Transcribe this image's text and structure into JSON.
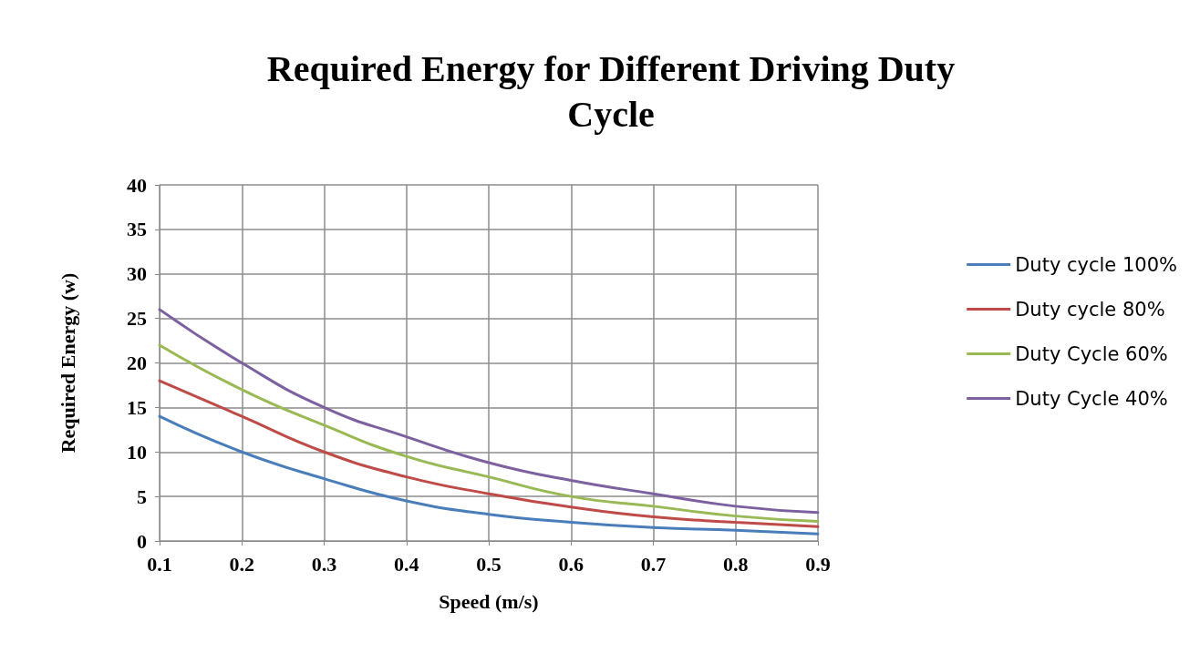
{
  "chart_data": {
    "type": "line",
    "title": "Required Energy for Different Driving Duty\nCycle",
    "xlabel": "Speed (m/s)",
    "ylabel": "Required Energy (w)",
    "x": [
      0.1,
      0.2,
      0.3,
      0.4,
      0.5,
      0.6,
      0.7,
      0.8,
      0.9
    ],
    "series": [
      {
        "name": "Duty cycle 100%",
        "color": "#4a7ebb",
        "values": [
          14,
          10,
          7,
          4.5,
          3,
          2.1,
          1.5,
          1.2,
          0.8
        ]
      },
      {
        "name": "Duty cycle 80%",
        "color": "#be4b48",
        "values": [
          18,
          14,
          10,
          7.2,
          5.3,
          3.8,
          2.7,
          2.1,
          1.6
        ]
      },
      {
        "name": "Duty Cycle 60%",
        "color": "#98b954",
        "values": [
          22,
          17,
          13,
          9.5,
          7.2,
          5,
          3.9,
          2.8,
          2.2
        ]
      },
      {
        "name": "Duty Cycle 40%",
        "color": "#7d60a0",
        "values": [
          26,
          20,
          15,
          11.7,
          8.8,
          6.8,
          5.3,
          3.9,
          3.2
        ]
      }
    ],
    "xlim": [
      0.1,
      0.9
    ],
    "xticks": [
      0.1,
      0.2,
      0.3,
      0.4,
      0.5,
      0.6,
      0.7,
      0.8,
      0.9
    ],
    "ylim": [
      0,
      40
    ],
    "yticks": [
      0,
      5,
      10,
      15,
      20,
      25,
      30,
      35,
      40
    ],
    "grid": true,
    "legend": "right",
    "marker": "none",
    "line_style": "solid"
  }
}
